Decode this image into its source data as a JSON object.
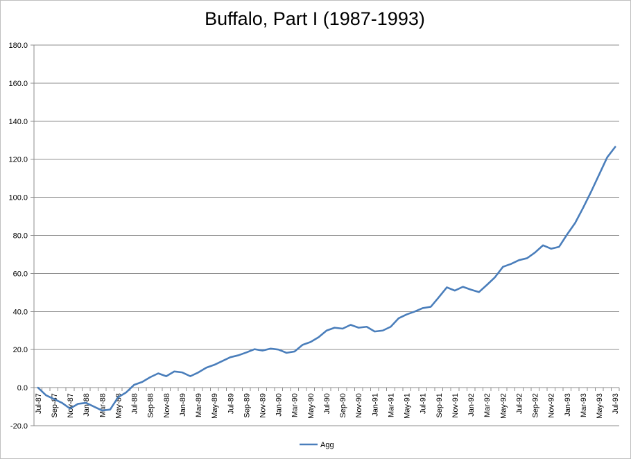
{
  "chart_data": {
    "type": "line",
    "title": "Buffalo, Part I (1987-1993)",
    "xlabel": "",
    "ylabel": "",
    "ylim": [
      -20,
      180
    ],
    "yticks": [
      "-20.0",
      "0.0",
      "20.0",
      "40.0",
      "60.0",
      "80.0",
      "100.0",
      "120.0",
      "140.0",
      "160.0",
      "180.0"
    ],
    "grid": true,
    "legend_position": "bottom",
    "x": [
      "Jul-87",
      "Aug-87",
      "Sep-87",
      "Oct-87",
      "Nov-87",
      "Dec-87",
      "Jan-88",
      "Feb-88",
      "Mar-88",
      "Apr-88",
      "May-88",
      "Jun-88",
      "Jul-88",
      "Aug-88",
      "Sep-88",
      "Oct-88",
      "Nov-88",
      "Dec-88",
      "Jan-89",
      "Feb-89",
      "Mar-89",
      "Apr-89",
      "May-89",
      "Jun-89",
      "Jul-89",
      "Aug-89",
      "Sep-89",
      "Oct-89",
      "Nov-89",
      "Dec-89",
      "Jan-90",
      "Feb-90",
      "Mar-90",
      "Apr-90",
      "May-90",
      "Jun-90",
      "Jul-90",
      "Aug-90",
      "Sep-90",
      "Oct-90",
      "Nov-90",
      "Dec-90",
      "Jan-91",
      "Feb-91",
      "Mar-91",
      "Apr-91",
      "May-91",
      "Jun-91",
      "Jul-91",
      "Aug-91",
      "Sep-91",
      "Oct-91",
      "Nov-91",
      "Dec-91",
      "Jan-92",
      "Feb-92",
      "Mar-92",
      "Apr-92",
      "May-92",
      "Jun-92",
      "Jul-92",
      "Aug-92",
      "Sep-92",
      "Oct-92",
      "Nov-92",
      "Dec-92",
      "Jan-93",
      "Feb-93",
      "Mar-93",
      "Apr-93",
      "May-93",
      "Jun-93",
      "Jul-93"
    ],
    "xtick_labels": [
      "Jul-87",
      "Sep-87",
      "Nov-87",
      "Jan-88",
      "Mar-88",
      "May-88",
      "Jul-88",
      "Sep-88",
      "Nov-88",
      "Jan-89",
      "Mar-89",
      "May-89",
      "Jul-89",
      "Sep-89",
      "Nov-89",
      "Jan-90",
      "Mar-90",
      "May-90",
      "Jul-90",
      "Sep-90",
      "Nov-90",
      "Jan-91",
      "Mar-91",
      "May-91",
      "Jul-91",
      "Sep-91",
      "Nov-91",
      "Jan-92",
      "Mar-92",
      "May-92",
      "Jul-92",
      "Sep-92",
      "Nov-92",
      "Jan-93",
      "Mar-93",
      "May-93",
      "Jul-93"
    ],
    "series": [
      {
        "name": "Agg",
        "color": "#4a7ebb",
        "values": [
          0.0,
          -4.0,
          -6.0,
          -8.0,
          -11.0,
          -8.5,
          -8.0,
          -10.0,
          -12.0,
          -11.5,
          -5.0,
          -2.5,
          1.5,
          3.0,
          5.5,
          7.5,
          6.0,
          8.5,
          8.0,
          6.0,
          8.0,
          10.5,
          12.0,
          14.0,
          16.0,
          17.0,
          18.5,
          20.2,
          19.5,
          20.5,
          20.0,
          18.3,
          19.0,
          22.5,
          24.0,
          26.5,
          30.0,
          31.5,
          31.0,
          33.0,
          31.5,
          32.0,
          29.5,
          30.0,
          32.0,
          36.5,
          38.5,
          40.0,
          41.8,
          42.5,
          47.5,
          52.7,
          51.0,
          53.0,
          51.5,
          50.2,
          54.0,
          58.0,
          63.5,
          65.0,
          67.0,
          68.0,
          71.0,
          74.8,
          73.0,
          74.0,
          80.5,
          86.5,
          94.5,
          103.0,
          112.0,
          121.0,
          126.5
        ]
      }
    ]
  }
}
